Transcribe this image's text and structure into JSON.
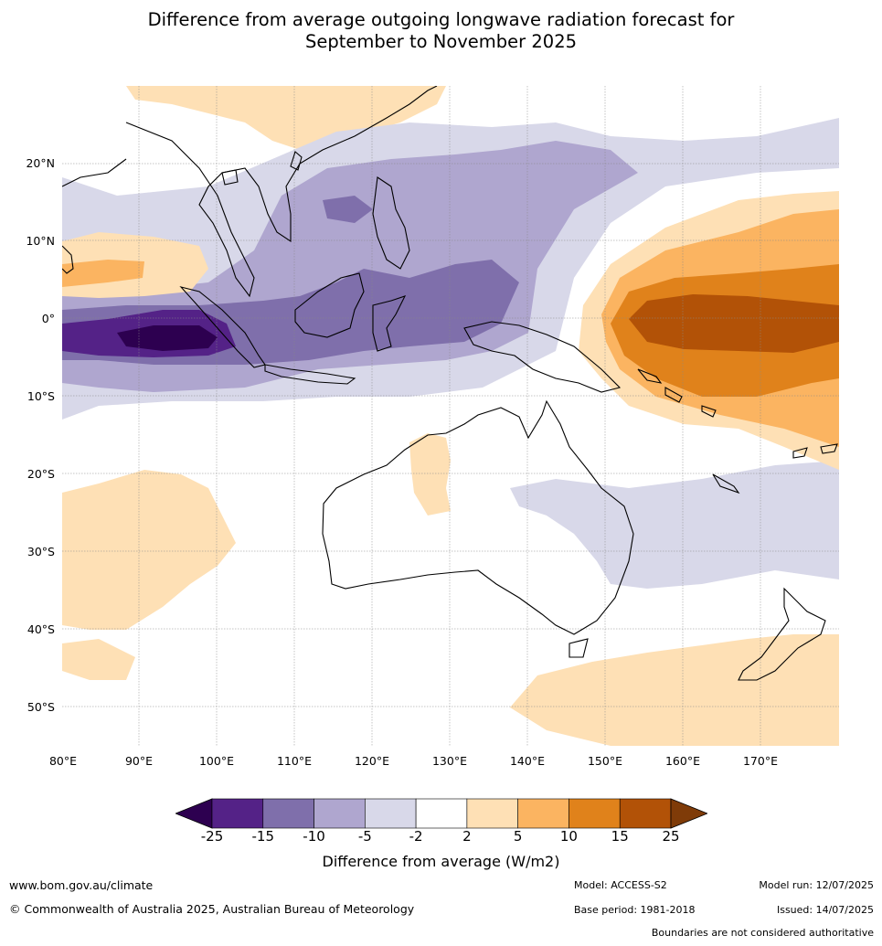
{
  "title_line1": "Difference from average outgoing longwave radiation forecast for",
  "title_line2": "September to November 2025",
  "lat_labels": [
    "20°N",
    "10°N",
    "0°",
    "10°S",
    "20°S",
    "30°S",
    "40°S",
    "50°S"
  ],
  "lon_labels": [
    "80°E",
    "90°E",
    "100°E",
    "110°E",
    "120°E",
    "130°E",
    "140°E",
    "150°E",
    "160°E",
    "170°E"
  ],
  "colorbar": {
    "ticks": [
      "-25",
      "-15",
      "-10",
      "-5",
      "-2",
      "2",
      "5",
      "10",
      "15",
      "25"
    ],
    "colors": [
      "#2d0050",
      "#542287",
      "#7f6fab",
      "#afa6cf",
      "#d8d8e9",
      "#ffffff",
      "#fee0b5",
      "#fbb461",
      "#e0821b",
      "#b25207",
      "#7f3b08"
    ],
    "label": "Difference from average (W/m2)"
  },
  "footer": {
    "url": "www.bom.gov.au/climate",
    "copyright": "© Commonwealth of Australia 2025, Australian Bureau of Meteorology",
    "model": "Model: ACCESS-S2",
    "base_period": "Base period: 1981-2018",
    "model_run": "Model run: 12/07/2025",
    "issued": "Issued: 14/07/2025",
    "disclaimer": "Boundaries are not considered authoritative"
  }
}
